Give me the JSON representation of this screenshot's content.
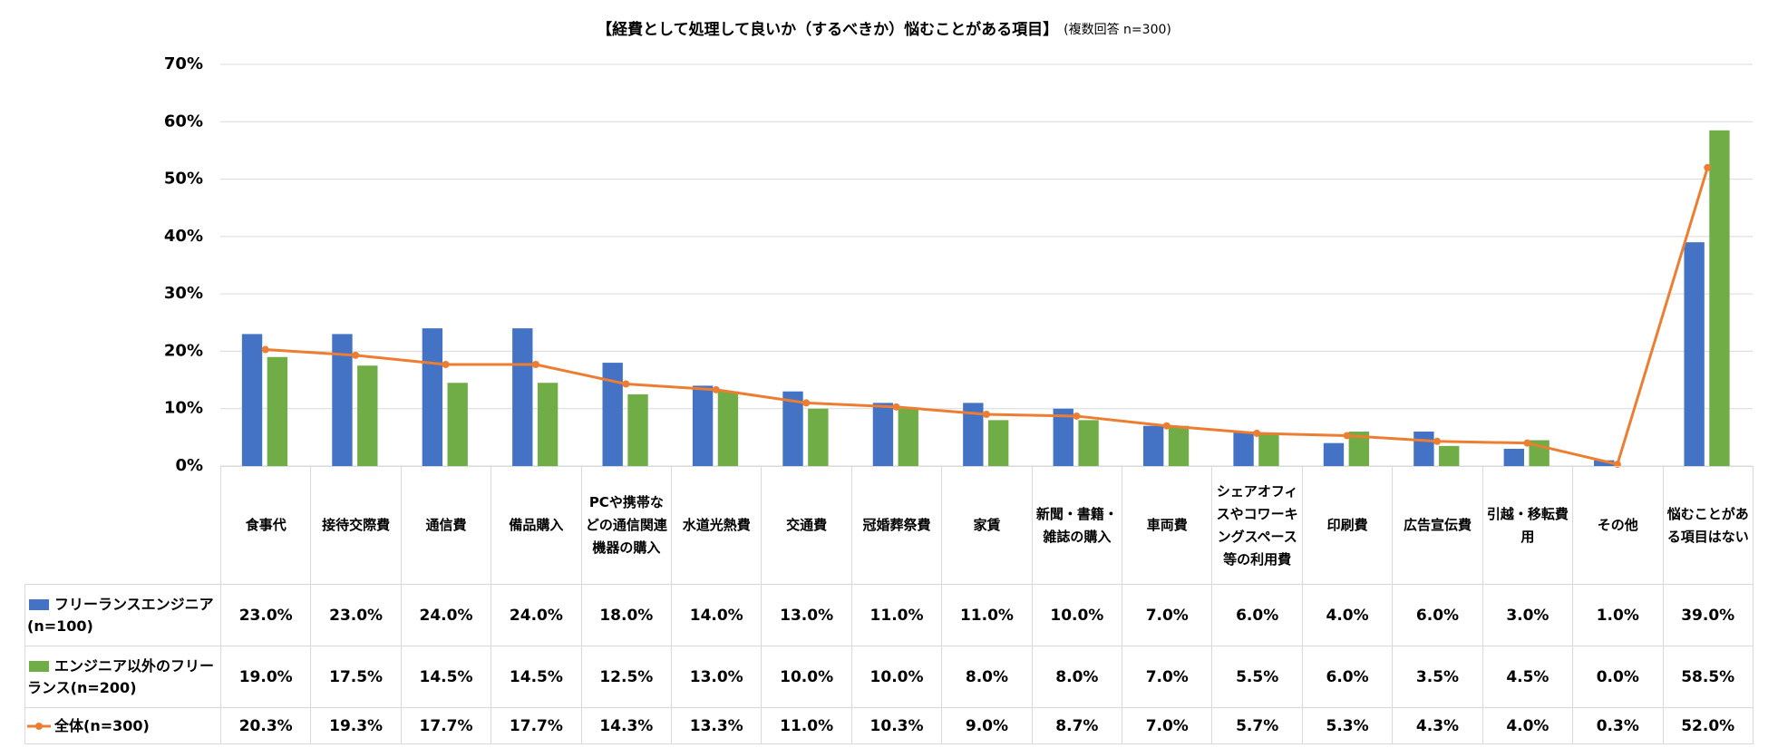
{
  "chart_data": {
    "type": "bar",
    "title": "【経費として処理して良いか（するべきか）悩むことがある項目】",
    "subtitle": "(複数回答 n=300)",
    "categories": [
      "食事代",
      "接待交際費",
      "通信費",
      "備品購入",
      "PCや携帯などの通信関連機器の購入",
      "水道光熱費",
      "交通費",
      "冠婚葬祭費",
      "家賃",
      "新聞・書籍・雑誌の購入",
      "車両費",
      "シェアオフィスやコワーキングスペース等の利用費",
      "印刷費",
      "広告宣伝費",
      "引越・移転費用",
      "その他",
      "悩むことがある項目はない"
    ],
    "series": [
      {
        "name": "フリーランスエンジニア(n=100)",
        "color": "#4472c4",
        "type": "bar",
        "values": [
          23,
          23,
          24,
          24,
          18,
          14,
          13,
          11,
          11,
          10,
          7,
          6,
          4,
          6,
          3,
          1,
          39
        ],
        "value_labels": [
          "23.0%",
          "23.0%",
          "24.0%",
          "24.0%",
          "18.0%",
          "14.0%",
          "13.0%",
          "11.0%",
          "11.0%",
          "10.0%",
          "7.0%",
          "6.0%",
          "4.0%",
          "6.0%",
          "3.0%",
          "1.0%",
          "39.0%"
        ]
      },
      {
        "name": "エンジニア以外のフリーランス(n=200)",
        "color": "#70ad47",
        "type": "bar",
        "values": [
          19,
          17.5,
          14.5,
          14.5,
          12.5,
          13,
          10,
          10,
          8,
          8,
          7,
          5.5,
          6,
          3.5,
          4.5,
          0,
          58.5
        ],
        "value_labels": [
          "19.0%",
          "17.5%",
          "14.5%",
          "14.5%",
          "12.5%",
          "13.0%",
          "10.0%",
          "10.0%",
          "8.0%",
          "8.0%",
          "7.0%",
          "5.5%",
          "6.0%",
          "3.5%",
          "4.5%",
          "0.0%",
          "58.5%"
        ]
      },
      {
        "name": "全体(n=300)",
        "color": "#ed7d31",
        "type": "line",
        "values": [
          20.3,
          19.3,
          17.7,
          17.7,
          14.3,
          13.3,
          11,
          10.3,
          9,
          8.7,
          7,
          5.7,
          5.3,
          4.3,
          4,
          0.3,
          52
        ],
        "value_labels": [
          "20.3%",
          "19.3%",
          "17.7%",
          "17.7%",
          "14.3%",
          "13.3%",
          "11.0%",
          "10.3%",
          "9.0%",
          "8.7%",
          "7.0%",
          "5.7%",
          "5.3%",
          "4.3%",
          "4.0%",
          "0.3%",
          "52.0%"
        ]
      }
    ],
    "ylim": [
      0,
      70
    ],
    "yticks": [
      {
        "value": 0,
        "label": "0%"
      },
      {
        "value": 10,
        "label": "10%"
      },
      {
        "value": 20,
        "label": "20%"
      },
      {
        "value": 30,
        "label": "30%"
      },
      {
        "value": 40,
        "label": "40%"
      },
      {
        "value": 50,
        "label": "50%"
      },
      {
        "value": 60,
        "label": "60%"
      },
      {
        "value": 70,
        "label": "70%"
      }
    ],
    "grid": true
  }
}
